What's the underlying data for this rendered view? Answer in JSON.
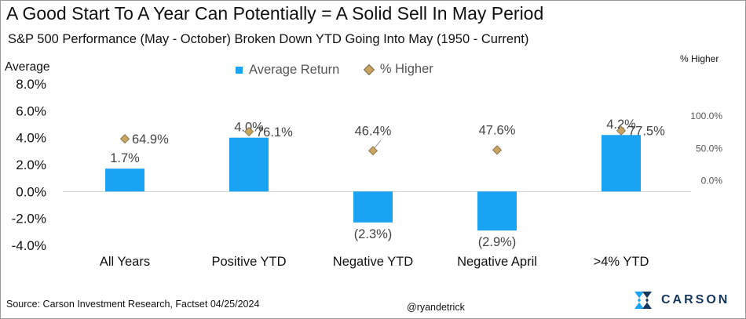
{
  "title": "A Good Start To A Year Can Potentially = A Solid Sell In May Period",
  "subtitle": "S&P 500 Performance (May - October) Broken Down YTD Going Into May (1950 - Current)",
  "source": "Source: Carson Investment Research, Factset 04/25/2024",
  "handle": "@ryandetrick",
  "logo": {
    "text": "CARSON"
  },
  "colors": {
    "bar": "#1aa3f2",
    "marker": "#c8a460",
    "marker_edge": "#7a6a45"
  },
  "chart_data": {
    "type": "bar",
    "categories": [
      "All Years",
      "Positive YTD",
      "Negative YTD",
      "Negative April",
      ">4% YTD"
    ],
    "ylabel": "Average",
    "y2label": "% Higher",
    "ylim": [
      -4,
      8
    ],
    "yticks": [
      "8.0%",
      "6.0%",
      "4.0%",
      "2.0%",
      "0.0%",
      "-2.0%",
      "-4.0%"
    ],
    "y2lim": [
      -100,
      150
    ],
    "y2ticks": [
      "100.0%",
      "50.0%",
      "0.0%"
    ],
    "legend_position": "top-center",
    "series": [
      {
        "name": "Average Return",
        "kind": "bar",
        "values": [
          1.7,
          4.0,
          -2.3,
          -2.9,
          4.2
        ],
        "labels": [
          "1.7%",
          "4.0%",
          "(2.3%)",
          "(2.9%)",
          "4.2%"
        ]
      },
      {
        "name": "% Higher",
        "kind": "marker",
        "axis": "right",
        "values": [
          64.9,
          76.1,
          46.4,
          47.6,
          77.5
        ],
        "labels": [
          "64.9%",
          "76.1%",
          "46.4%",
          "47.6%",
          "77.5%"
        ]
      }
    ]
  }
}
